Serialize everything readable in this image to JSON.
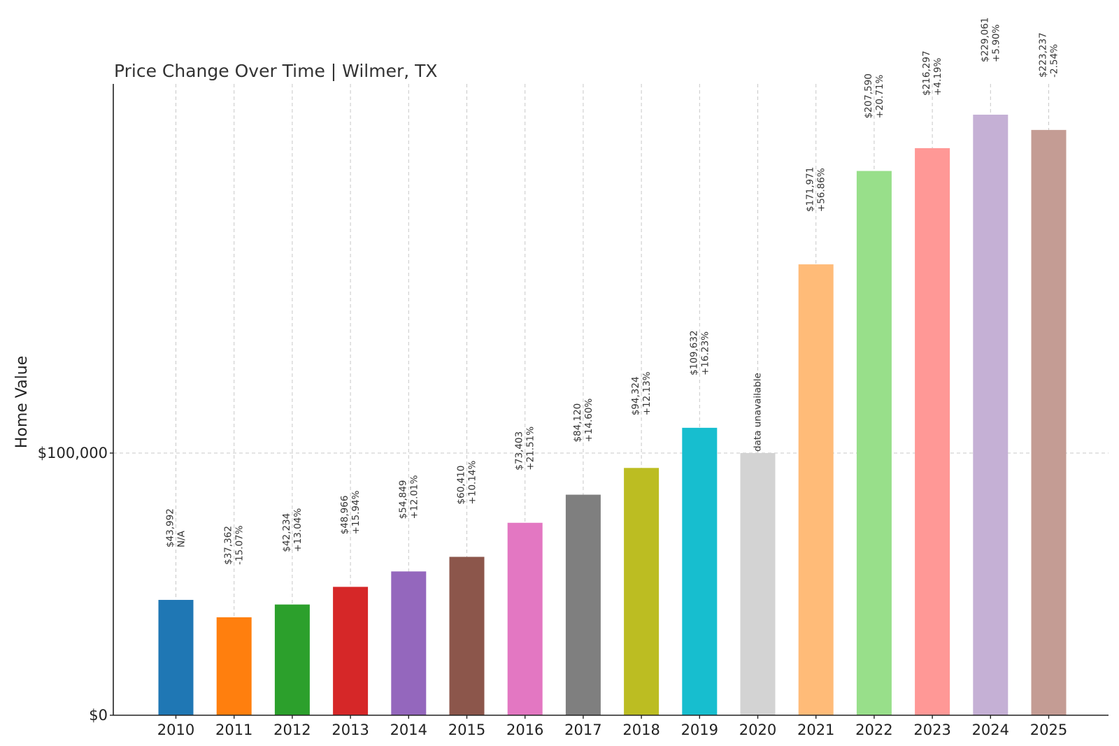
{
  "chart_data": {
    "type": "bar",
    "title": "Price Change Over Time | Wilmer, TX",
    "xlabel": "",
    "ylabel": "Home Value",
    "ylim": [
      0,
      240000
    ],
    "yticks": [
      {
        "value": 0,
        "label": "$0"
      },
      {
        "value": 100000,
        "label": "$100,000"
      }
    ],
    "grid": true,
    "categories": [
      "2010",
      "2011",
      "2012",
      "2013",
      "2014",
      "2015",
      "2016",
      "2017",
      "2018",
      "2019",
      "2020",
      "2021",
      "2022",
      "2023",
      "2024",
      "2025"
    ],
    "values": [
      43992,
      37362,
      42234,
      48966,
      54849,
      60410,
      73403,
      84120,
      94324,
      109632,
      100000,
      171971,
      207590,
      216297,
      229061,
      223237
    ],
    "colors": [
      "#1f77b4",
      "#ff7f0e",
      "#2ca02c",
      "#d62728",
      "#9467bd",
      "#8c564b",
      "#e377c2",
      "#7f7f7f",
      "#bcbd22",
      "#17becf",
      "#d3d3d3",
      "#ffbb78",
      "#98df8a",
      "#ff9896",
      "#c5b0d5",
      "#c49c94"
    ],
    "value_labels": [
      "$43,992",
      "$37,362",
      "$42,234",
      "$48,966",
      "$54,849",
      "$60,410",
      "$73,403",
      "$84,120",
      "$94,324",
      "$109,632",
      "data unavailable",
      "$171,971",
      "$207,590",
      "$216,297",
      "$229,061",
      "$223,237"
    ],
    "change_labels": [
      "N/A",
      "-15.07%",
      "+13.04%",
      "+15.94%",
      "+12.01%",
      "+10.14%",
      "+21.51%",
      "+14.60%",
      "+12.13%",
      "+16.23%",
      "",
      "+56.86%",
      "+20.71%",
      "+4.19%",
      "+5.90%",
      "-2.54%"
    ]
  }
}
